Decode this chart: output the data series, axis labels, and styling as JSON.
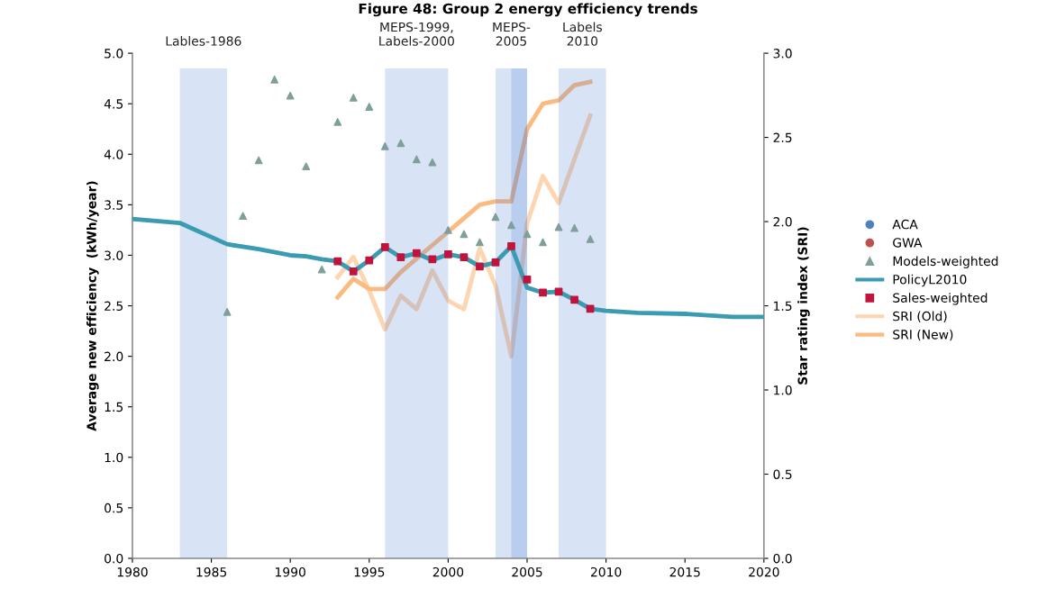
{
  "chart_data": {
    "type": "line",
    "title": "Figure 48: Group 2 energy efficiency trends",
    "ylabel": "Average new efficiency  (kWh/year)",
    "y2label": "Star rating index (SRI)",
    "xlim": [
      1980,
      2020
    ],
    "xticks": [
      1980,
      1985,
      1990,
      1995,
      2000,
      2005,
      2010,
      2015,
      2020
    ],
    "ylim": [
      0,
      5
    ],
    "yticks": [
      {
        "value": 0,
        "label": "0.0"
      },
      {
        "value": 0.5,
        "label": "0.5"
      },
      {
        "value": 1,
        "label": "1.0"
      },
      {
        "value": 1.5,
        "label": "1.5"
      },
      {
        "value": 2,
        "label": "2.0"
      },
      {
        "value": 2.5,
        "label": "2.5"
      },
      {
        "value": 3,
        "label": "3.0"
      },
      {
        "value": 3.5,
        "label": "3.5"
      },
      {
        "value": 4,
        "label": "4.0"
      },
      {
        "value": 4.5,
        "label": "4.5"
      },
      {
        "value": 5,
        "label": "5.0"
      }
    ],
    "y2lim": [
      0,
      3
    ],
    "y2ticks": [
      {
        "value": 0,
        "label": "0.0"
      },
      {
        "value": 0.5,
        "label": "0.5"
      },
      {
        "value": 1,
        "label": "1.0"
      },
      {
        "value": 1.5,
        "label": "1.5"
      },
      {
        "value": 2,
        "label": "2.0"
      },
      {
        "value": 2.5,
        "label": "2.5"
      },
      {
        "value": 3,
        "label": "3.0"
      }
    ],
    "grid": false,
    "legend": "right",
    "bands": [
      {
        "axis": "x",
        "from": 1983,
        "to": 1986,
        "label": "Lables-1986",
        "color": "#4f7fd6"
      },
      {
        "axis": "x",
        "from": 1996,
        "to": 2000,
        "label": "MEPS-1999,\nLabels-2000",
        "color": "#4f7fd6"
      },
      {
        "axis": "x",
        "from": 2003,
        "to": 2005,
        "label": "MEPS-\n2005",
        "color": "#4f7fd6"
      },
      {
        "axis": "x",
        "from": 2004,
        "to": 2005,
        "label": null,
        "color": "#4f7fd6"
      },
      {
        "axis": "x",
        "from": 2007,
        "to": 2010,
        "label": "Labels\n2010",
        "color": "#4f7fd6"
      }
    ],
    "series": [
      {
        "name": "ACA",
        "type": "scatter",
        "marker": "circle",
        "color": "#4f81bd"
      },
      {
        "name": "GWA",
        "type": "scatter",
        "marker": "circle",
        "color": "#c0504d"
      },
      {
        "name": "Models-weighted",
        "type": "scatter",
        "marker": "triangle",
        "color": "#7f9f9a",
        "x": [
          1986,
          1987,
          1988,
          1989,
          1990,
          1991,
          1992,
          1993,
          1994,
          1995,
          1996,
          1997,
          1998,
          1999,
          2000,
          2001,
          2002,
          2003,
          2004,
          2005,
          2006,
          2007,
          2008,
          2009
        ],
        "values": [
          2.44,
          3.39,
          3.94,
          4.74,
          4.58,
          3.88,
          2.86,
          4.32,
          4.56,
          4.47,
          4.08,
          4.11,
          3.95,
          3.92,
          3.25,
          3.21,
          3.13,
          3.38,
          3.3,
          3.21,
          3.13,
          3.28,
          3.27,
          3.16
        ]
      },
      {
        "name": "PolicyL2010",
        "marker": "none",
        "line_style": "solid",
        "color": "#3a9bb3",
        "x": [
          1980,
          1983,
          1986,
          1988,
          1990,
          1991,
          1992,
          1993,
          1994,
          1995,
          1996,
          1997,
          1998,
          1999,
          2000,
          2001,
          2002,
          2003,
          2004,
          2005,
          2006,
          2007,
          2008,
          2009,
          2010,
          2012,
          2015,
          2018,
          2020
        ],
        "values": [
          3.36,
          3.32,
          3.11,
          3.06,
          3.0,
          2.99,
          2.96,
          2.94,
          2.84,
          2.95,
          3.08,
          2.98,
          3.02,
          2.95,
          3.01,
          2.98,
          2.89,
          2.93,
          3.09,
          2.68,
          2.63,
          2.64,
          2.56,
          2.47,
          2.45,
          2.43,
          2.42,
          2.39,
          2.39
        ]
      },
      {
        "name": "Sales-weighted",
        "type": "scatter",
        "marker": "square",
        "color": "#c0143c",
        "x": [
          1993,
          1994,
          1995,
          1996,
          1997,
          1998,
          1999,
          2000,
          2001,
          2002,
          2003,
          2004,
          2005,
          2006,
          2007,
          2008,
          2009
        ],
        "values": [
          2.94,
          2.84,
          2.95,
          3.08,
          2.98,
          3.02,
          2.96,
          3.01,
          2.98,
          2.89,
          2.93,
          3.09,
          2.76,
          2.63,
          2.64,
          2.56,
          2.47
        ]
      },
      {
        "name": "SRI (Old)",
        "axis": "y2",
        "marker": "none",
        "line_style": "solid",
        "color": "#fdd5b0",
        "x": [
          1993,
          1994,
          1995,
          1996,
          1997,
          1998,
          1999,
          2000,
          2001,
          2002,
          2003,
          2004,
          2005,
          2006,
          2007,
          2008,
          2009
        ],
        "values": [
          1.67,
          1.79,
          1.59,
          1.36,
          1.56,
          1.48,
          1.71,
          1.53,
          1.48,
          1.84,
          1.62,
          1.2,
          1.99,
          2.27,
          2.11,
          2.37,
          2.63
        ]
      },
      {
        "name": "SRI (New)",
        "axis": "y2",
        "marker": "none",
        "line_style": "solid",
        "color": "#fbbb80",
        "x": [
          1993,
          1994,
          1995,
          1996,
          1997,
          1998,
          1999,
          2000,
          2001,
          2002,
          2003,
          2004,
          2005,
          2006,
          2007,
          2008,
          2009
        ],
        "values": [
          1.55,
          1.66,
          1.6,
          1.6,
          1.7,
          1.78,
          1.86,
          1.94,
          2.02,
          2.1,
          2.12,
          2.12,
          2.55,
          2.7,
          2.72,
          2.81,
          2.83
        ]
      }
    ]
  }
}
